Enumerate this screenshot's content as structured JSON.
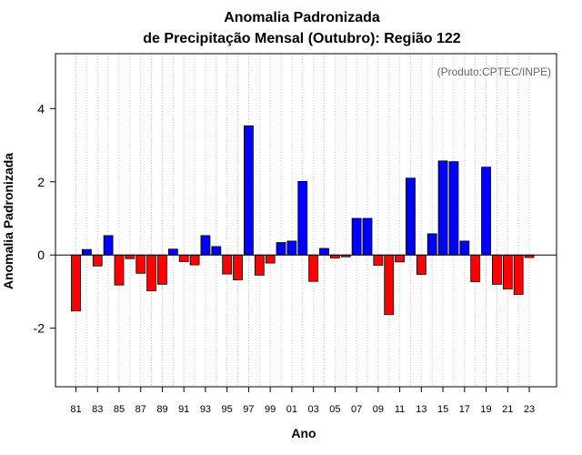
{
  "chart_data": {
    "type": "bar",
    "title_line1": "Anomalia Padronizada",
    "title_line2": "de Precipitação Mensal (Outubro): Região 122",
    "credit": "(Produto:CPTEC/INPE)",
    "xlabel": "Ano",
    "ylabel": "Anomalia Padronizada",
    "ylim": [
      -3.6,
      5.5
    ],
    "yticks": [
      -2,
      0,
      2,
      4
    ],
    "ytick_labels": [
      "-2",
      "0",
      "2",
      "4"
    ],
    "tick_labels": [
      "81",
      "83",
      "85",
      "87",
      "89",
      "91",
      "93",
      "95",
      "97",
      "99",
      "01",
      "03",
      "05",
      "07",
      "09",
      "11",
      "13",
      "15",
      "17",
      "19",
      "21",
      "23"
    ],
    "categories": [
      "1981",
      "1982",
      "1983",
      "1984",
      "1985",
      "1986",
      "1987",
      "1988",
      "1989",
      "1990",
      "1991",
      "1992",
      "1993",
      "1994",
      "1995",
      "1996",
      "1997",
      "1998",
      "1999",
      "2000",
      "2001",
      "2002",
      "2003",
      "2004",
      "2005",
      "2006",
      "2007",
      "2008",
      "2009",
      "2010",
      "2011",
      "2012",
      "2013",
      "2014",
      "2015",
      "2016",
      "2017",
      "2018",
      "2019",
      "2020",
      "2021",
      "2022",
      "2023"
    ],
    "values": [
      -1.53,
      0.15,
      -0.3,
      0.53,
      -0.82,
      -0.1,
      -0.5,
      -0.98,
      -0.8,
      0.16,
      -0.18,
      -0.27,
      0.53,
      0.23,
      -0.52,
      -0.68,
      3.53,
      -0.55,
      -0.22,
      0.34,
      0.38,
      2.01,
      -0.72,
      0.18,
      -0.08,
      -0.05,
      1.0,
      1.0,
      -0.28,
      -1.63,
      -0.19,
      2.1,
      -0.53,
      0.58,
      2.57,
      2.55,
      0.38,
      -0.73,
      2.4,
      -0.8,
      -0.93,
      -1.08,
      -0.07
    ],
    "grid": true,
    "colors": {
      "positive": "#0000ff",
      "negative": "#ff0000",
      "grid": "#cccccc",
      "axis": "#000000"
    }
  }
}
